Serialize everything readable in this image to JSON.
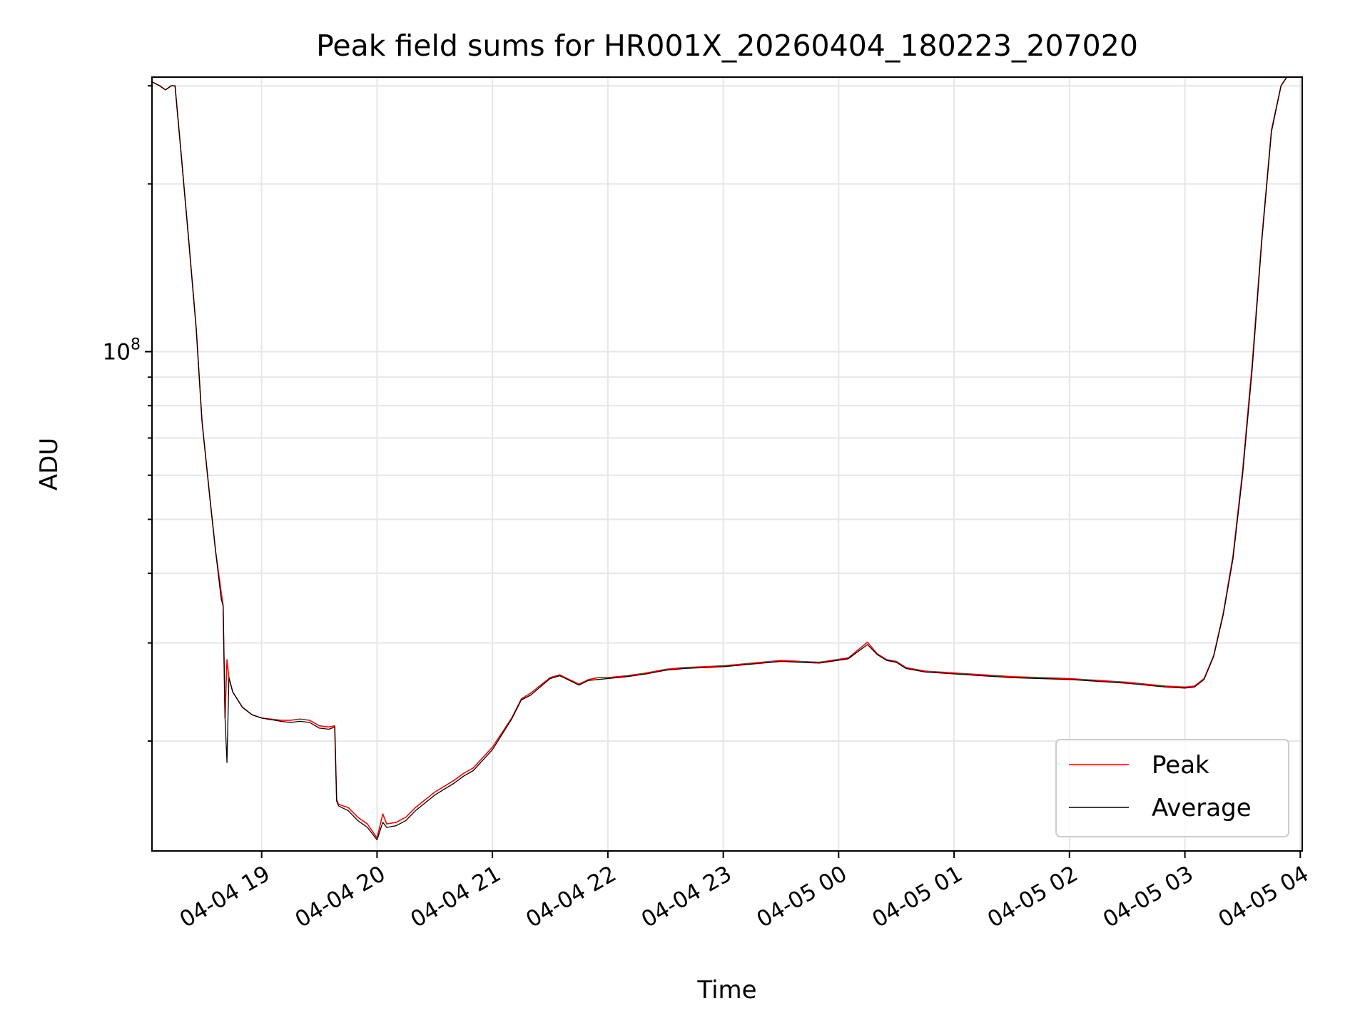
{
  "chart_data": {
    "type": "line",
    "title": "Peak field sums for HR001X_20260404_180223_207020",
    "xlabel": "Time",
    "ylabel": "ADU",
    "yscale": "log",
    "grid": true,
    "legend_position": "lower-right",
    "xlim": [
      "2026-04-04 18:03",
      "2026-04-05 04:01"
    ],
    "ylim": [
      12700000,
      311000000
    ],
    "x_ticks": [
      {
        "value": "2026-04-04 19:00",
        "label": "04-04 19"
      },
      {
        "value": "2026-04-04 20:00",
        "label": "04-04 20"
      },
      {
        "value": "2026-04-04 21:00",
        "label": "04-04 21"
      },
      {
        "value": "2026-04-04 22:00",
        "label": "04-04 22"
      },
      {
        "value": "2026-04-04 23:00",
        "label": "04-04 23"
      },
      {
        "value": "2026-04-05 00:00",
        "label": "04-05 00"
      },
      {
        "value": "2026-04-05 01:00",
        "label": "04-05 01"
      },
      {
        "value": "2026-04-05 02:00",
        "label": "04-05 02"
      },
      {
        "value": "2026-04-05 03:00",
        "label": "04-05 03"
      },
      {
        "value": "2026-04-05 04:00",
        "label": "04-05 04"
      }
    ],
    "y_major_ticks": [
      {
        "value": 100000000,
        "base": "10",
        "exp": "8"
      }
    ],
    "y_minor_ticks": [
      20000000,
      30000000,
      40000000,
      50000000,
      60000000,
      70000000,
      80000000,
      90000000,
      200000000,
      300000000
    ],
    "series": [
      {
        "name": "Peak",
        "color": "#ff0000",
        "x": [
          "2026-04-04 18:03",
          "2026-04-04 18:07",
          "2026-04-04 18:10",
          "2026-04-04 18:13",
          "2026-04-04 18:15",
          "2026-04-04 18:18",
          "2026-04-04 18:22",
          "2026-04-04 18:26",
          "2026-04-04 18:29",
          "2026-04-04 18:33",
          "2026-04-04 18:36",
          "2026-04-04 18:39",
          "2026-04-04 18:40",
          "2026-04-04 18:41",
          "2026-04-04 18:42",
          "2026-04-04 18:43",
          "2026-04-04 18:45",
          "2026-04-04 18:50",
          "2026-04-04 18:55",
          "2026-04-04 19:00",
          "2026-04-04 19:10",
          "2026-04-04 19:15",
          "2026-04-04 19:20",
          "2026-04-04 19:25",
          "2026-04-04 19:30",
          "2026-04-04 19:35",
          "2026-04-04 19:38",
          "2026-04-04 19:39",
          "2026-04-04 19:40",
          "2026-04-04 19:45",
          "2026-04-04 19:50",
          "2026-04-04 19:55",
          "2026-04-04 20:00",
          "2026-04-04 20:03",
          "2026-04-04 20:05",
          "2026-04-04 20:10",
          "2026-04-04 20:15",
          "2026-04-04 20:20",
          "2026-04-04 20:30",
          "2026-04-04 20:40",
          "2026-04-04 20:45",
          "2026-04-04 20:50",
          "2026-04-04 21:00",
          "2026-04-04 21:10",
          "2026-04-04 21:15",
          "2026-04-04 21:20",
          "2026-04-04 21:30",
          "2026-04-04 21:35",
          "2026-04-04 21:45",
          "2026-04-04 21:50",
          "2026-04-04 21:55",
          "2026-04-04 22:00",
          "2026-04-04 22:10",
          "2026-04-04 22:20",
          "2026-04-04 22:30",
          "2026-04-04 22:40",
          "2026-04-04 22:50",
          "2026-04-04 23:00",
          "2026-04-04 23:30",
          "2026-04-04 23:50",
          "2026-04-05 00:05",
          "2026-04-05 00:15",
          "2026-04-05 00:20",
          "2026-04-05 00:25",
          "2026-04-05 00:30",
          "2026-04-05 00:35",
          "2026-04-05 00:45",
          "2026-04-05 01:00",
          "2026-04-05 01:30",
          "2026-04-05 02:00",
          "2026-04-05 02:30",
          "2026-04-05 02:50",
          "2026-04-05 03:00",
          "2026-04-05 03:05",
          "2026-04-05 03:10",
          "2026-04-05 03:15",
          "2026-04-05 03:20",
          "2026-04-05 03:25",
          "2026-04-05 03:30",
          "2026-04-05 03:35",
          "2026-04-05 03:40",
          "2026-04-05 03:45",
          "2026-04-05 03:50",
          "2026-04-05 03:53",
          "2026-04-05 03:56"
        ],
        "values": [
          305000000,
          300000000,
          295000000,
          300000000,
          300000000,
          230000000,
          160000000,
          110000000,
          75000000,
          55000000,
          44000000,
          37000000,
          35000000,
          22000000,
          28000000,
          26000000,
          24500000,
          23000000,
          22300000,
          22000000,
          21800000,
          21800000,
          21900000,
          21800000,
          21300000,
          21200000,
          21300000,
          15700000,
          15400000,
          15200000,
          14600000,
          14200000,
          13400000,
          14800000,
          14200000,
          14300000,
          14600000,
          15200000,
          16200000,
          17000000,
          17500000,
          17900000,
          19500000,
          22000000,
          23800000,
          24400000,
          26000000,
          26300000,
          25300000,
          25800000,
          26000000,
          26000000,
          26200000,
          26500000,
          26900000,
          27100000,
          27200000,
          27300000,
          27900000,
          27700000,
          28200000,
          30100000,
          28700000,
          28000000,
          27800000,
          27100000,
          26700000,
          26500000,
          26100000,
          25900000,
          25500000,
          25100000,
          25000000,
          25100000,
          25900000,
          28500000,
          34000000,
          43000000,
          61000000,
          95000000,
          160000000,
          250000000,
          300000000,
          311000000,
          311000000
        ]
      },
      {
        "name": "Average",
        "color": "#000000",
        "x": [
          "2026-04-04 18:03",
          "2026-04-04 18:07",
          "2026-04-04 18:10",
          "2026-04-04 18:13",
          "2026-04-04 18:15",
          "2026-04-04 18:18",
          "2026-04-04 18:22",
          "2026-04-04 18:26",
          "2026-04-04 18:29",
          "2026-04-04 18:33",
          "2026-04-04 18:36",
          "2026-04-04 18:39",
          "2026-04-04 18:40",
          "2026-04-04 18:41",
          "2026-04-04 18:42",
          "2026-04-04 18:43",
          "2026-04-04 18:45",
          "2026-04-04 18:50",
          "2026-04-04 18:55",
          "2026-04-04 19:00",
          "2026-04-04 19:10",
          "2026-04-04 19:15",
          "2026-04-04 19:20",
          "2026-04-04 19:25",
          "2026-04-04 19:30",
          "2026-04-04 19:35",
          "2026-04-04 19:38",
          "2026-04-04 19:39",
          "2026-04-04 19:40",
          "2026-04-04 19:45",
          "2026-04-04 19:50",
          "2026-04-04 19:55",
          "2026-04-04 20:00",
          "2026-04-04 20:03",
          "2026-04-04 20:05",
          "2026-04-04 20:10",
          "2026-04-04 20:15",
          "2026-04-04 20:20",
          "2026-04-04 20:30",
          "2026-04-04 20:40",
          "2026-04-04 20:45",
          "2026-04-04 20:50",
          "2026-04-04 21:00",
          "2026-04-04 21:10",
          "2026-04-04 21:15",
          "2026-04-04 21:20",
          "2026-04-04 21:30",
          "2026-04-04 21:35",
          "2026-04-04 21:45",
          "2026-04-04 21:50",
          "2026-04-04 21:55",
          "2026-04-04 22:00",
          "2026-04-04 22:10",
          "2026-04-04 22:20",
          "2026-04-04 22:30",
          "2026-04-04 22:40",
          "2026-04-04 22:50",
          "2026-04-04 23:00",
          "2026-04-04 23:30",
          "2026-04-04 23:50",
          "2026-04-05 00:05",
          "2026-04-05 00:15",
          "2026-04-05 00:20",
          "2026-04-05 00:25",
          "2026-04-05 00:30",
          "2026-04-05 00:35",
          "2026-04-05 00:45",
          "2026-04-05 01:00",
          "2026-04-05 01:30",
          "2026-04-05 02:00",
          "2026-04-05 02:30",
          "2026-04-05 02:50",
          "2026-04-05 03:00",
          "2026-04-05 03:05",
          "2026-04-05 03:10",
          "2026-04-05 03:15",
          "2026-04-05 03:20",
          "2026-04-05 03:25",
          "2026-04-05 03:30",
          "2026-04-05 03:35",
          "2026-04-05 03:40",
          "2026-04-05 03:45",
          "2026-04-05 03:50",
          "2026-04-05 03:53",
          "2026-04-05 03:56"
        ],
        "values": [
          305000000,
          300000000,
          295000000,
          300000000,
          300000000,
          230000000,
          160000000,
          110000000,
          75000000,
          55000000,
          44000000,
          36000000,
          35000000,
          22000000,
          18300000,
          26000000,
          24500000,
          23000000,
          22300000,
          22000000,
          21700000,
          21600000,
          21700000,
          21600000,
          21100000,
          21000000,
          21200000,
          15600000,
          15300000,
          15000000,
          14400000,
          14000000,
          13300000,
          14300000,
          14000000,
          14100000,
          14400000,
          15000000,
          16000000,
          16800000,
          17300000,
          17700000,
          19300000,
          21900000,
          23700000,
          24200000,
          25900000,
          26200000,
          25200000,
          25700000,
          25800000,
          25900000,
          26100000,
          26400000,
          26800000,
          27000000,
          27100000,
          27200000,
          27800000,
          27600000,
          28100000,
          29800000,
          28600000,
          27900000,
          27700000,
          27000000,
          26600000,
          26400000,
          26000000,
          25800000,
          25400000,
          25000000,
          24900000,
          25000000,
          25800000,
          28400000,
          33800000,
          42500000,
          60000000,
          93000000,
          158000000,
          248000000,
          300000000,
          311000000,
          311000000
        ]
      }
    ]
  }
}
